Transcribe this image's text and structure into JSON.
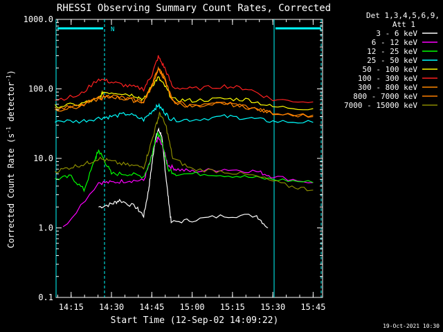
{
  "chart_data": {
    "type": "line",
    "title": "RHESSI Observing Summary Count Rates, Corrected",
    "xlabel": "Start Time (12-Sep-02 14:09:22)",
    "ylabel_main": "Corrected Count Rate (s",
    "ylabel_sup1": "-1",
    "ylabel_mid": " detector",
    "ylabel_sup2": "-1",
    "ylabel_end": ")",
    "y_scale": "log",
    "ylim": [
      0.1,
      1000
    ],
    "y_ticks": [
      "0.1",
      "1.0",
      "10.0",
      "100.0",
      "1000.0"
    ],
    "x_ticks": [
      "14:15",
      "14:30",
      "14:45",
      "15:00",
      "15:15",
      "15:30",
      "15:45"
    ],
    "legend_header": "Det 1,3,4,5,6,9,",
    "legend_header2": "Att 1",
    "legend_position": "top-right",
    "night_flag_label": "N",
    "timestamp": "19-Oct-2021 10:30",
    "series": [
      {
        "name": "3 - 6 keV",
        "color": "#ffffff",
        "points": [
          [
            14.42,
            2.0
          ],
          [
            14.5,
            2.2
          ],
          [
            14.55,
            2.5
          ],
          [
            14.65,
            2.0
          ],
          [
            14.7,
            1.5
          ],
          [
            14.73,
            3.5
          ],
          [
            14.75,
            8
          ],
          [
            14.77,
            18
          ],
          [
            14.79,
            26
          ],
          [
            14.81,
            22
          ],
          [
            14.83,
            8
          ],
          [
            14.85,
            3
          ],
          [
            14.87,
            1.2
          ],
          [
            15.0,
            1.3
          ],
          [
            15.2,
            1.5
          ],
          [
            15.4,
            1.5
          ],
          [
            15.47,
            1.0
          ]
        ]
      },
      {
        "name": "6 - 12 keV",
        "color": "#ff00ff",
        "points": [
          [
            14.2,
            1.0
          ],
          [
            14.42,
            4.5
          ],
          [
            14.5,
            4.5
          ],
          [
            14.6,
            4.8
          ],
          [
            14.7,
            4.8
          ],
          [
            14.74,
            9
          ],
          [
            14.77,
            16
          ],
          [
            14.79,
            20
          ],
          [
            14.82,
            14
          ],
          [
            14.85,
            8
          ],
          [
            14.9,
            7
          ],
          [
            15.0,
            6.5
          ],
          [
            15.2,
            7
          ],
          [
            15.4,
            6.5
          ],
          [
            15.5,
            5.5
          ],
          [
            15.75,
            4.5
          ]
        ]
      },
      {
        "name": "12 - 25 keV",
        "color": "#00ff00",
        "points": [
          [
            14.15,
            5
          ],
          [
            14.25,
            5.5
          ],
          [
            14.33,
            3.5
          ],
          [
            14.4,
            10
          ],
          [
            14.42,
            13
          ],
          [
            14.45,
            10
          ],
          [
            14.5,
            6
          ],
          [
            14.6,
            6
          ],
          [
            14.7,
            5.5
          ],
          [
            14.74,
            9
          ],
          [
            14.77,
            18
          ],
          [
            14.79,
            23
          ],
          [
            14.82,
            15
          ],
          [
            14.85,
            7
          ],
          [
            14.9,
            6
          ],
          [
            15.1,
            6
          ],
          [
            15.3,
            5.5
          ],
          [
            15.5,
            5
          ],
          [
            15.75,
            4.5
          ]
        ]
      },
      {
        "name": "25 - 50 keV",
        "color": "#00ffff",
        "points": [
          [
            14.15,
            35
          ],
          [
            14.3,
            34
          ],
          [
            14.42,
            38
          ],
          [
            14.5,
            40
          ],
          [
            14.6,
            44
          ],
          [
            14.7,
            36
          ],
          [
            14.76,
            50
          ],
          [
            14.79,
            58
          ],
          [
            14.83,
            46
          ],
          [
            14.87,
            36
          ],
          [
            15.0,
            36
          ],
          [
            15.2,
            40
          ],
          [
            15.35,
            38
          ],
          [
            15.5,
            34
          ],
          [
            15.75,
            33
          ]
        ]
      },
      {
        "name": "50 - 100 keV",
        "color": "#ffff00",
        "points": [
          [
            14.15,
            56
          ],
          [
            14.3,
            60
          ],
          [
            14.42,
            72
          ],
          [
            14.45,
            90
          ],
          [
            14.55,
            88
          ],
          [
            14.65,
            80
          ],
          [
            14.7,
            70
          ],
          [
            14.75,
            110
          ],
          [
            14.79,
            145
          ],
          [
            14.83,
            110
          ],
          [
            14.88,
            70
          ],
          [
            15.0,
            68
          ],
          [
            15.2,
            72
          ],
          [
            15.35,
            70
          ],
          [
            15.5,
            55
          ],
          [
            15.75,
            52
          ]
        ]
      },
      {
        "name": "100 - 300 keV",
        "color": "#ff2020",
        "points": [
          [
            14.15,
            70
          ],
          [
            14.3,
            80
          ],
          [
            14.42,
            140
          ],
          [
            14.5,
            125
          ],
          [
            14.6,
            110
          ],
          [
            14.7,
            100
          ],
          [
            14.75,
            160
          ],
          [
            14.79,
            290
          ],
          [
            14.83,
            200
          ],
          [
            14.88,
            105
          ],
          [
            15.0,
            100
          ],
          [
            15.2,
            110
          ],
          [
            15.35,
            100
          ],
          [
            15.5,
            70
          ],
          [
            15.75,
            65
          ]
        ]
      },
      {
        "name": "300 - 800 keV",
        "color": "#ff8800",
        "points": [
          [
            14.15,
            50
          ],
          [
            14.3,
            55
          ],
          [
            14.42,
            72
          ],
          [
            14.5,
            78
          ],
          [
            14.6,
            70
          ],
          [
            14.7,
            65
          ],
          [
            14.75,
            110
          ],
          [
            14.79,
            195
          ],
          [
            14.83,
            140
          ],
          [
            14.88,
            65
          ],
          [
            15.0,
            55
          ],
          [
            15.2,
            62
          ],
          [
            15.35,
            54
          ],
          [
            15.5,
            45
          ],
          [
            15.75,
            42
          ]
        ]
      },
      {
        "name": "800 - 7000 keV",
        "color": "#ff7f00",
        "points": [
          [
            14.15,
            52
          ],
          [
            14.3,
            56
          ],
          [
            14.42,
            74
          ],
          [
            14.5,
            80
          ],
          [
            14.6,
            72
          ],
          [
            14.7,
            66
          ],
          [
            14.75,
            112
          ],
          [
            14.79,
            200
          ],
          [
            14.83,
            142
          ],
          [
            14.88,
            66
          ],
          [
            15.0,
            56
          ],
          [
            15.2,
            63
          ],
          [
            15.35,
            55
          ],
          [
            15.5,
            44
          ],
          [
            15.75,
            40
          ]
        ]
      },
      {
        "name": "7000 - 15000 keV",
        "color": "#8b8b00",
        "points": [
          [
            14.15,
            6.5
          ],
          [
            14.25,
            7.5
          ],
          [
            14.35,
            8.5
          ],
          [
            14.42,
            10
          ],
          [
            14.5,
            9
          ],
          [
            14.6,
            8
          ],
          [
            14.7,
            7.5
          ],
          [
            14.74,
            15
          ],
          [
            14.78,
            32
          ],
          [
            14.8,
            45
          ],
          [
            14.84,
            28
          ],
          [
            14.88,
            10
          ],
          [
            15.0,
            7
          ],
          [
            15.2,
            6.5
          ],
          [
            15.4,
            5.5
          ],
          [
            15.6,
            4
          ],
          [
            15.75,
            3.5
          ]
        ]
      }
    ]
  }
}
